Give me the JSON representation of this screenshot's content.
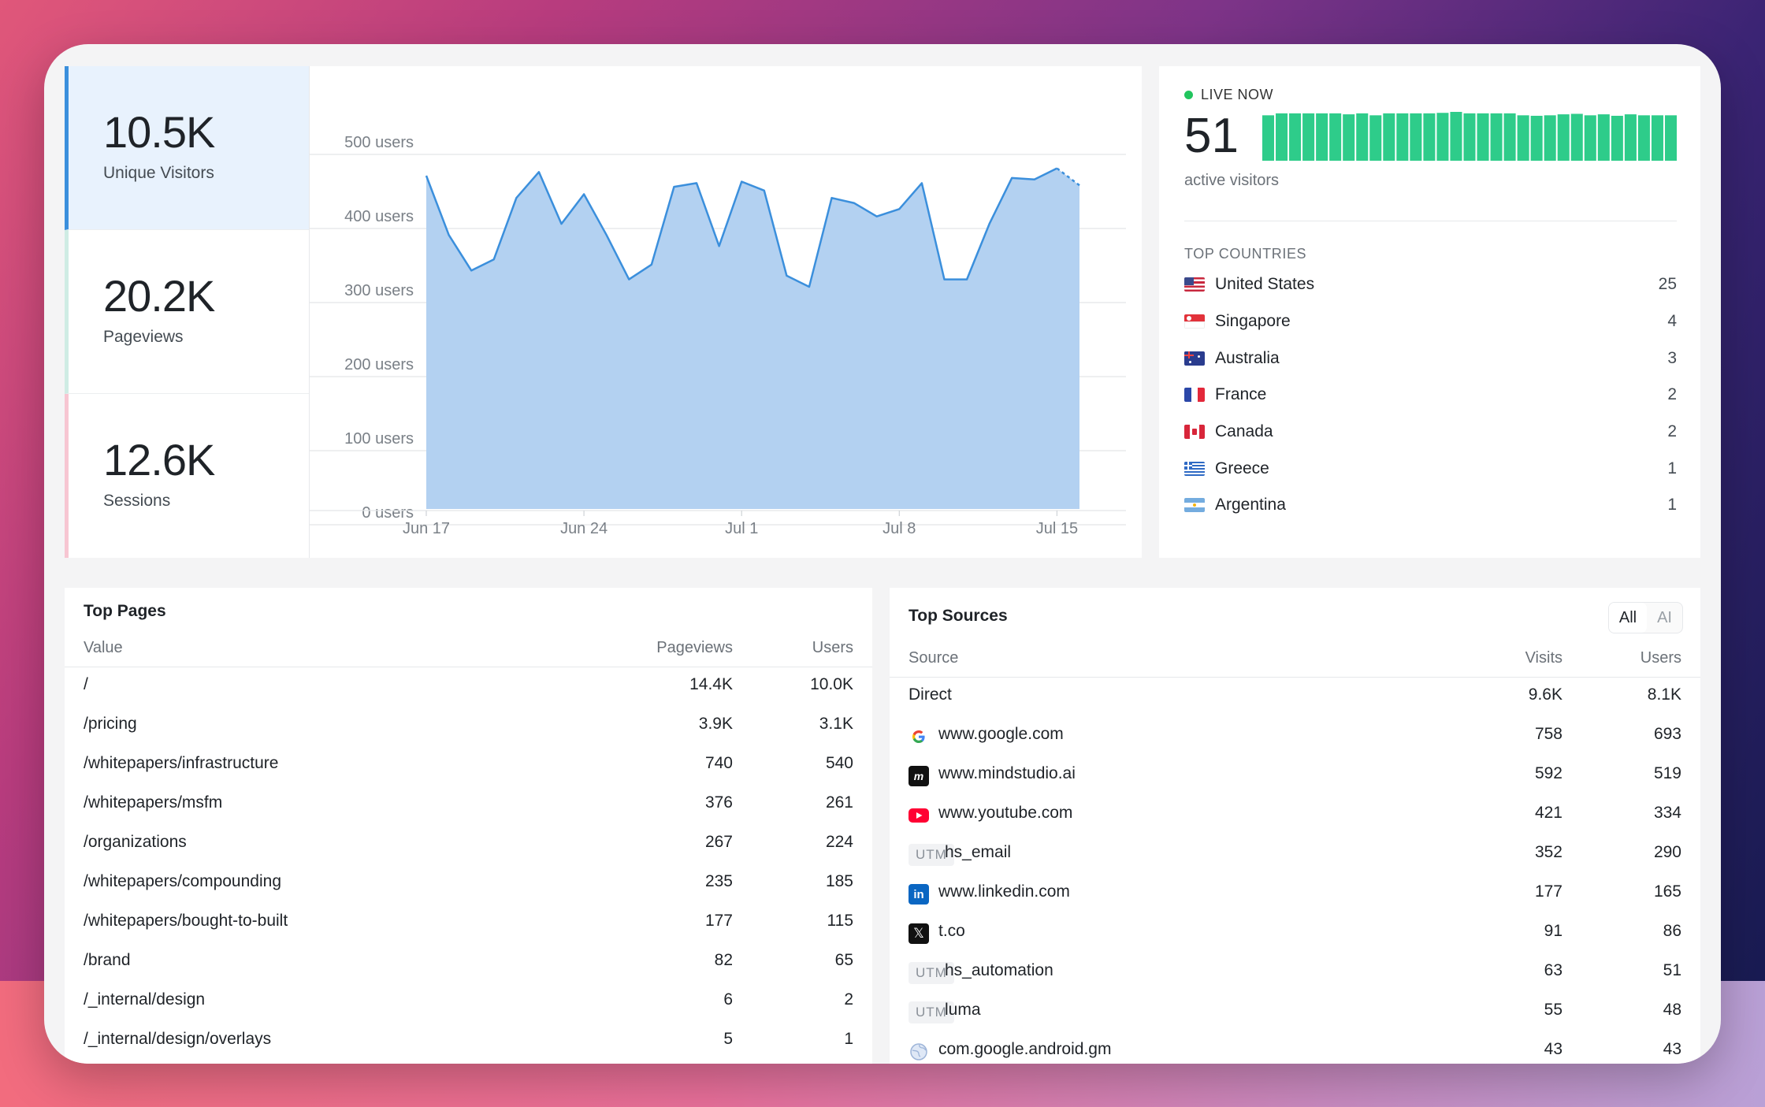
{
  "kpis": [
    {
      "value": "10.5K",
      "label": "Unique Visitors",
      "accent": "#3b8fdc",
      "bg": "#e8f2fd"
    },
    {
      "value": "20.2K",
      "label": "Pageviews",
      "accent": "#cfece4",
      "bg": "#ffffff"
    },
    {
      "value": "12.6K",
      "label": "Sessions",
      "accent": "#f7c6d2",
      "bg": "#ffffff"
    }
  ],
  "chart_data": {
    "type": "area",
    "ylabel_ticks": [
      "0 users",
      "100 users",
      "200 users",
      "300 users",
      "400 users",
      "500 users"
    ],
    "ylim": [
      0,
      500
    ],
    "x_ticks": [
      "Jun 17",
      "Jun 24",
      "Jul 1",
      "Jul 8",
      "Jul 15"
    ],
    "x_tick_index": [
      0,
      7,
      14,
      21,
      28
    ],
    "grid": true,
    "series": [
      {
        "values": [
          450,
          370,
          322,
          337,
          420,
          455,
          385,
          425,
          370,
          310,
          330,
          435,
          440,
          355,
          442,
          430,
          315,
          300,
          420,
          413,
          395,
          405,
          440,
          310,
          310,
          385,
          447,
          445,
          460,
          437
        ],
        "partial_from_index": 28,
        "color": "#3b8fdc",
        "fill": "#b3d1f1"
      }
    ]
  },
  "live": {
    "label": "LIVE NOW",
    "count": "51",
    "sub": "active visitors",
    "bar_color": "#2ecc8a",
    "bars": [
      0.93,
      0.97,
      0.97,
      0.97,
      0.97,
      0.97,
      0.95,
      0.97,
      0.93,
      0.97,
      0.97,
      0.97,
      0.97,
      0.98,
      1.0,
      0.97,
      0.97,
      0.97,
      0.97,
      0.93,
      0.92,
      0.93,
      0.95,
      0.96,
      0.93,
      0.95,
      0.92,
      0.95,
      0.93,
      0.93,
      0.93
    ]
  },
  "top_countries": {
    "title": "TOP COUNTRIES",
    "items": [
      {
        "name": "United States",
        "count": "25",
        "flag": "us"
      },
      {
        "name": "Singapore",
        "count": "4",
        "flag": "sg"
      },
      {
        "name": "Australia",
        "count": "3",
        "flag": "au"
      },
      {
        "name": "France",
        "count": "2",
        "flag": "fr"
      },
      {
        "name": "Canada",
        "count": "2",
        "flag": "ca"
      },
      {
        "name": "Greece",
        "count": "1",
        "flag": "gr"
      },
      {
        "name": "Argentina",
        "count": "1",
        "flag": "ar"
      }
    ]
  },
  "top_pages": {
    "title": "Top Pages",
    "headers": {
      "value": "Value",
      "pageviews": "Pageviews",
      "users": "Users"
    },
    "rows": [
      {
        "path": "/",
        "pageviews": "14.4K",
        "users": "10.0K"
      },
      {
        "path": "/pricing",
        "pageviews": "3.9K",
        "users": "3.1K"
      },
      {
        "path": "/whitepapers/infrastructure",
        "pageviews": "740",
        "users": "540"
      },
      {
        "path": "/whitepapers/msfm",
        "pageviews": "376",
        "users": "261"
      },
      {
        "path": "/organizations",
        "pageviews": "267",
        "users": "224"
      },
      {
        "path": "/whitepapers/compounding",
        "pageviews": "235",
        "users": "185"
      },
      {
        "path": "/whitepapers/bought-to-built",
        "pageviews": "177",
        "users": "115"
      },
      {
        "path": "/brand",
        "pageviews": "82",
        "users": "65"
      },
      {
        "path": "/_internal/design",
        "pageviews": "6",
        "users": "2"
      },
      {
        "path": "/_internal/design/overlays",
        "pageviews": "5",
        "users": "1"
      }
    ]
  },
  "top_sources": {
    "title": "Top Sources",
    "toggle": {
      "all": "All",
      "ai": "AI"
    },
    "headers": {
      "source": "Source",
      "visits": "Visits",
      "users": "Users"
    },
    "rows": [
      {
        "name": "Direct",
        "icon": "none",
        "visits": "9.6K",
        "users": "8.1K"
      },
      {
        "name": "www.google.com",
        "icon": "google-icon",
        "visits": "758",
        "users": "693"
      },
      {
        "name": "www.mindstudio.ai",
        "icon": "mindstudio-icon",
        "visits": "592",
        "users": "519"
      },
      {
        "name": "www.youtube.com",
        "icon": "youtube-icon",
        "visits": "421",
        "users": "334"
      },
      {
        "name": "hs_email",
        "icon": "utm",
        "badge": "UTM",
        "visits": "352",
        "users": "290"
      },
      {
        "name": "www.linkedin.com",
        "icon": "linkedin-icon",
        "visits": "177",
        "users": "165"
      },
      {
        "name": "t.co",
        "icon": "x-icon",
        "visits": "91",
        "users": "86"
      },
      {
        "name": "hs_automation",
        "icon": "utm",
        "badge": "UTM",
        "visits": "63",
        "users": "51"
      },
      {
        "name": "luma",
        "icon": "utm",
        "badge": "UTM",
        "visits": "55",
        "users": "48"
      },
      {
        "name": "com.google.android.gm",
        "icon": "globe-icon",
        "visits": "43",
        "users": "43"
      }
    ]
  }
}
